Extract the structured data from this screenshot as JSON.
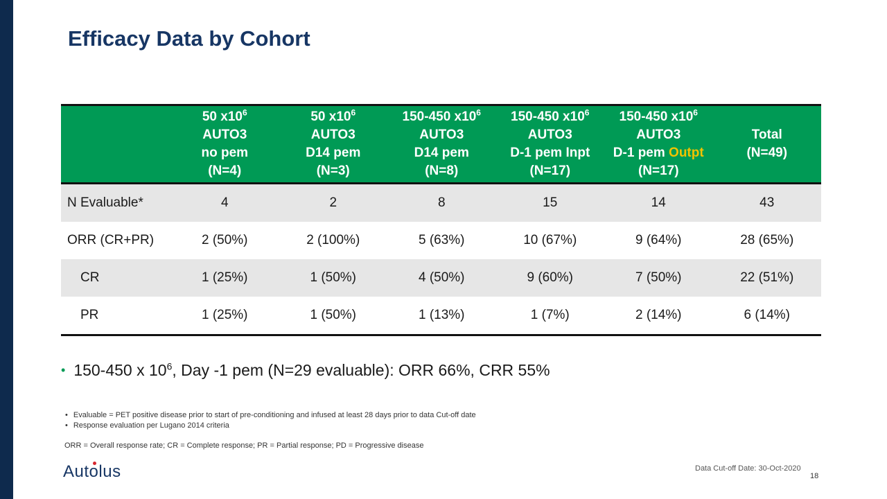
{
  "title": "Efficacy Data by Cohort",
  "table": {
    "headers": [
      {
        "lines": [
          "",
          "",
          "",
          ""
        ]
      },
      {
        "dose": "50 x10",
        "exp": "6",
        "product": "AUTO3",
        "regimen": "no pem",
        "regimen_highlight": "",
        "n": "(N=4)"
      },
      {
        "dose": "50 x10",
        "exp": "6",
        "product": "AUTO3",
        "regimen": "D14 pem",
        "regimen_highlight": "",
        "n": "(N=3)"
      },
      {
        "dose": "150-450 x10",
        "exp": "6",
        "product": "AUTO3",
        "regimen": "D14 pem",
        "regimen_highlight": "",
        "n": "(N=8)"
      },
      {
        "dose": "150-450 x10",
        "exp": "6",
        "product": "AUTO3",
        "regimen": "D-1 pem Inpt",
        "regimen_highlight": "",
        "n": "(N=17)"
      },
      {
        "dose": "150-450 x10",
        "exp": "6",
        "product": "AUTO3",
        "regimen": "D-1 pem ",
        "regimen_highlight": "Outpt",
        "n": "(N=17)"
      },
      {
        "total": "Total",
        "n": "(N=49)"
      }
    ],
    "rows": [
      {
        "label": "N Evaluable*",
        "cells": [
          "4",
          "2",
          "8",
          "15",
          "14",
          "43"
        ]
      },
      {
        "label": "ORR (CR+PR)",
        "cells": [
          "2 (50%)",
          "2 (100%)",
          "5 (63%)",
          "10 (67%)",
          "9 (64%)",
          "28 (65%)"
        ]
      },
      {
        "label": "CR",
        "cells": [
          "1 (25%)",
          "1 (50%)",
          "4 (50%)",
          "9 (60%)",
          "7 (50%)",
          "22 (51%)"
        ]
      },
      {
        "label": "PR",
        "cells": [
          "1 (25%)",
          "1 (50%)",
          "1 (13%)",
          "1 (7%)",
          "2 (14%)",
          "6 (14%)"
        ]
      }
    ]
  },
  "bullet": {
    "pre": "150-450 x 10",
    "exp": "6",
    "post": ", Day -1 pem (N=29 evaluable): ORR 66%, CRR 55%"
  },
  "footnotes": [
    "Evaluable = PET positive disease prior to start of pre-conditioning and infused at least 28 days prior to data Cut-off date",
    "Response evaluation per Lugano 2014 criteria"
  ],
  "abbreviations": "ORR = Overall response rate; CR = Complete response; PR = Partial response; PD = Progressive disease",
  "cutoff": "Data Cut-off Date: 30-Oct-2020",
  "page_number": "18",
  "logo": {
    "part1": "Aut",
    "part2": "o",
    "part3": "lus"
  },
  "colors": {
    "navy": "#173664",
    "green": "#009a55",
    "highlight": "#f2c300",
    "logo_dot": "#d6262e"
  }
}
